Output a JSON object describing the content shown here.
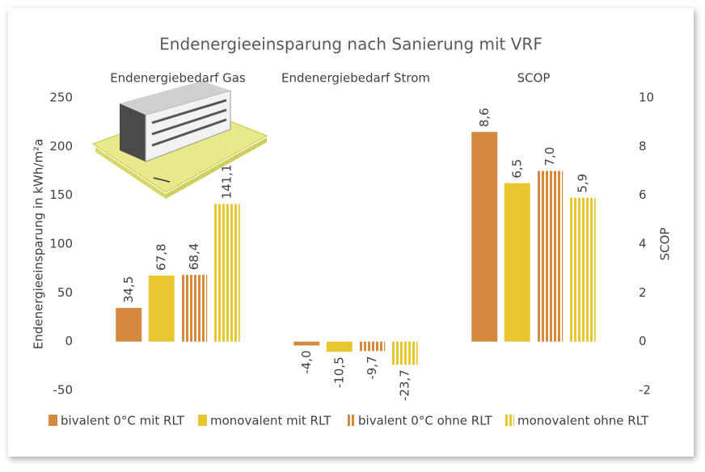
{
  "chart_data": {
    "type": "bar",
    "title": "Endenergieeinsparung nach Sanierung mit VRF",
    "y_label": "Endenergieeinsparung in kWh/m²a",
    "y2_label": "SCOP",
    "categories": [
      "Endenergiebedarf Gas",
      "Endenergiebedarf Strom",
      "SCOP"
    ],
    "category_axes": [
      "y",
      "y",
      "y2"
    ],
    "series": [
      {
        "name": "bivalent 0°C mit RLT",
        "color": "#d4893f",
        "hatch": false,
        "values": [
          34.5,
          -4.0,
          8.6
        ],
        "value_labels": [
          "34,5",
          "-4,0",
          "8,6"
        ]
      },
      {
        "name": "monovalent mit RLT",
        "color": "#e8c630",
        "hatch": false,
        "values": [
          67.8,
          -10.5,
          6.5
        ],
        "value_labels": [
          "67,8",
          "-10,5",
          "6,5"
        ]
      },
      {
        "name": "bivalent 0°C ohne RLT",
        "color": "#d4893f",
        "hatch": true,
        "values": [
          68.4,
          -9.7,
          7.0
        ],
        "value_labels": [
          "68,4",
          "-9,7",
          "7,0"
        ]
      },
      {
        "name": "monovalent ohne RLT",
        "color": "#e8c630",
        "hatch": true,
        "values": [
          141.1,
          -23.7,
          5.9
        ],
        "value_labels": [
          "141,1",
          "-23,7",
          "5,9"
        ]
      }
    ],
    "ylim": [
      -50,
      250
    ],
    "yticks": [
      -50,
      0,
      50,
      100,
      150,
      200,
      250
    ],
    "y2lim": [
      -2,
      10
    ],
    "y2ticks": [
      -2,
      0,
      2,
      4,
      6,
      8,
      10
    ],
    "legend": "bottom",
    "grid": false
  }
}
